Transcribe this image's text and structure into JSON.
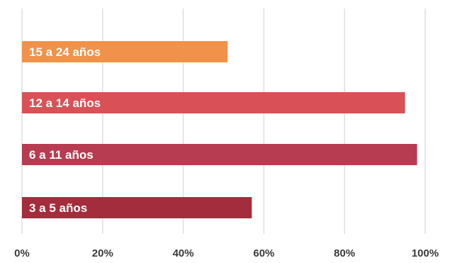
{
  "chart_data": {
    "type": "bar",
    "orientation": "horizontal",
    "categories": [
      "15 a 24 años",
      "12 a 14 años",
      "6 a 11 años",
      "3 a 5 años"
    ],
    "values": [
      51,
      95,
      98,
      57
    ],
    "colors": [
      "#f0924a",
      "#d95156",
      "#b73c51",
      "#a32d3c"
    ],
    "xlim": [
      0,
      100
    ],
    "xticks": [
      "0%",
      "20%",
      "40%",
      "60%",
      "80%",
      "100%"
    ],
    "xtick_values": [
      0,
      20,
      40,
      60,
      80,
      100
    ],
    "grid": true,
    "gridline_color": "#dedede",
    "legend": "none",
    "bar_labels": "inside-left"
  }
}
